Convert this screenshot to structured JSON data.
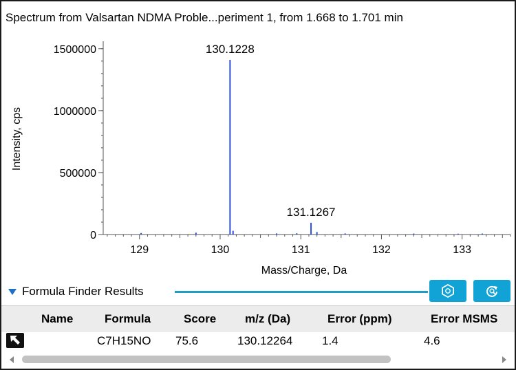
{
  "spectrum": {
    "title": "Spectrum from Valsartan NDMA Proble...periment 1, from 1.668 to 1.701 min"
  },
  "chart_data": {
    "type": "bar",
    "xlabel": "Mass/Charge, Da",
    "ylabel": "Intensity, cps",
    "xlim": [
      128.55,
      133.6
    ],
    "ylim": [
      0,
      1560000
    ],
    "x_ticks": [
      129,
      130,
      131,
      132,
      133
    ],
    "y_ticks": [
      0,
      500000,
      1000000,
      1500000
    ],
    "x_tick_labels": [
      "129",
      "130",
      "131",
      "132",
      "133"
    ],
    "y_tick_labels": [
      "0",
      "500000",
      "1000000",
      "1500000"
    ],
    "grid": false,
    "color": "#2b4fe0",
    "peaks": [
      {
        "x": 130.1228,
        "y": 1410000,
        "label": "130.1228"
      },
      {
        "x": 131.1267,
        "y": 95000,
        "label": "131.1267"
      },
      {
        "x": 130.16,
        "y": 30000
      },
      {
        "x": 129.02,
        "y": 12000
      },
      {
        "x": 129.7,
        "y": 15000
      },
      {
        "x": 130.7,
        "y": 9000
      },
      {
        "x": 130.95,
        "y": 10000
      },
      {
        "x": 131.2,
        "y": 20000
      },
      {
        "x": 131.55,
        "y": 9000
      },
      {
        "x": 132.4,
        "y": 8000
      },
      {
        "x": 132.95,
        "y": 7000
      },
      {
        "x": 133.25,
        "y": 8000
      }
    ]
  },
  "results": {
    "section_label": "Formula Finder Results",
    "columns": [
      "Name",
      "Formula",
      "Score",
      "m/z (Da)",
      "Error (ppm)",
      "Error MSMS"
    ],
    "rows": [
      {
        "name": "",
        "formula": "C7H15NO",
        "score": "75.6",
        "mz": "130.12264",
        "error_ppm": "1.4",
        "error_msms": "4.6"
      }
    ]
  },
  "toolbar": {
    "button1_icon": "formula-finder-icon",
    "button2_icon": "refresh-search-icon"
  },
  "colors": {
    "accent": "#11a3d6",
    "peak": "#2b4fe0"
  }
}
